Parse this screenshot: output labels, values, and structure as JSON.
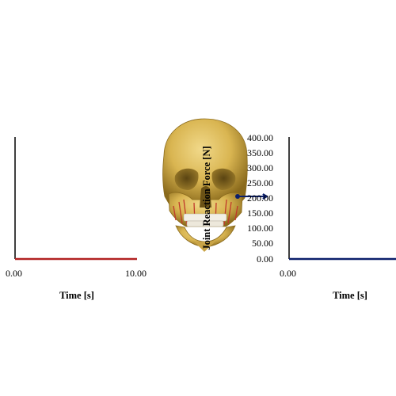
{
  "viewer": {
    "model_icon": "skull-3d-model",
    "colors": {
      "bone": "#d9b551",
      "muscle": "#c0392b",
      "teeth": "#f2efe6",
      "series_left": "#b22222",
      "series_right": "#0b1f6b",
      "axis": "#000000"
    }
  },
  "chart_data": [
    {
      "type": "line",
      "xlabel": "Time [s]",
      "ylabel": "",
      "x_ticks": [
        "0.00",
        "10.00"
      ],
      "xlim": [
        0,
        10
      ],
      "ylim": [
        0,
        400
      ],
      "series": [
        {
          "x": [
            0,
            10
          ],
          "y": [
            0,
            0
          ],
          "color": "#b22222"
        }
      ]
    },
    {
      "type": "line",
      "xlabel": "Time [s]",
      "ylabel": "Joint Reaction Force [N]",
      "x_ticks": [
        "0.00"
      ],
      "y_ticks": [
        "400.00",
        "350.00",
        "300.00",
        "250.00",
        "200.00",
        "150.00",
        "100.00",
        "50.00",
        "0.00"
      ],
      "xlim": [
        0,
        10
      ],
      "ylim": [
        0,
        400
      ],
      "series": [
        {
          "x": [
            0,
            10
          ],
          "y": [
            0,
            0
          ],
          "color": "#0b1f6b"
        }
      ]
    }
  ]
}
